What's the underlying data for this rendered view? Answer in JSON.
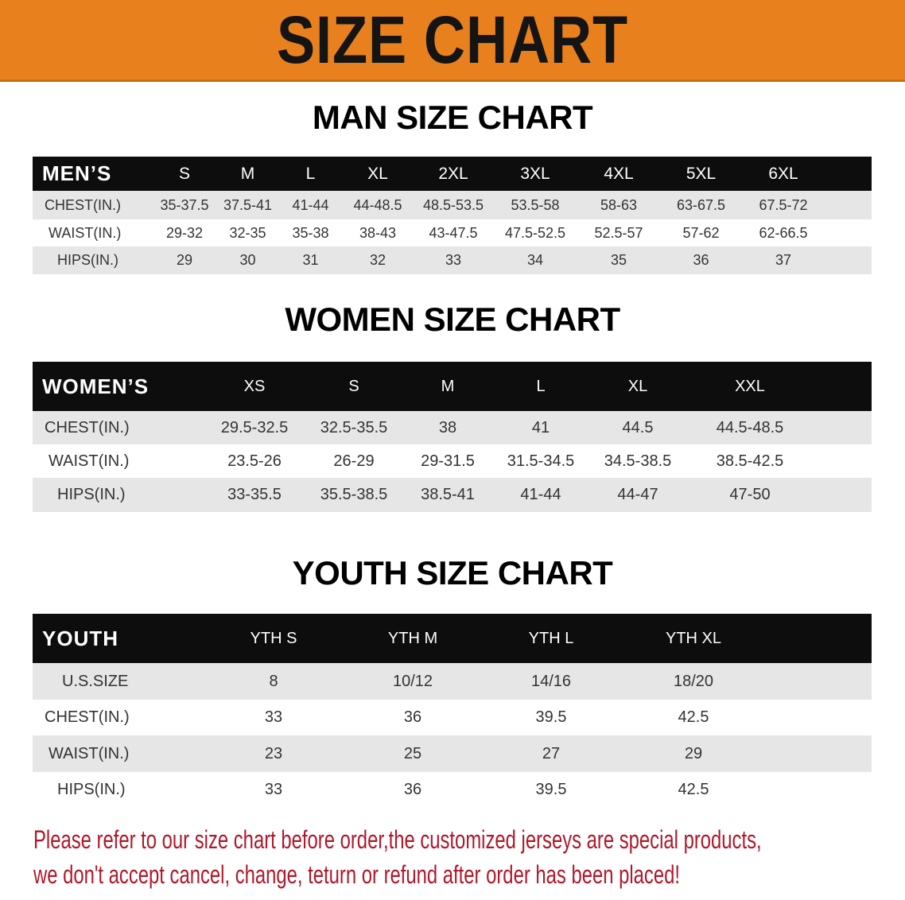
{
  "title": "SIZE CHART",
  "colors": {
    "banner": "#E8801E",
    "header_row": "#0d0d0d",
    "stripe": "#e6e6e6",
    "notice": "#B0182A"
  },
  "men": {
    "title": "MAN SIZE CHART",
    "header": "MEN’S",
    "sizes": [
      "S",
      "M",
      "L",
      "XL",
      "2XL",
      "3XL",
      "4XL",
      "5XL",
      "6XL"
    ],
    "rows": [
      {
        "label": "CHEST(IN.)",
        "values": [
          "35-37.5",
          "37.5-41",
          "41-44",
          "44-48.5",
          "48.5-53.5",
          "53.5-58",
          "58-63",
          "63-67.5",
          "67.5-72"
        ]
      },
      {
        "label": "WAIST(IN.)",
        "values": [
          "29-32",
          "32-35",
          "35-38",
          "38-43",
          "43-47.5",
          "47.5-52.5",
          "52.5-57",
          "57-62",
          "62-66.5"
        ]
      },
      {
        "label": "HIPS(IN.)",
        "values": [
          "29",
          "30",
          "31",
          "32",
          "33",
          "34",
          "35",
          "36",
          "37"
        ]
      }
    ]
  },
  "women": {
    "title": "WOMEN SIZE CHART",
    "header": "WOMEN’S",
    "sizes": [
      "XS",
      "S",
      "M",
      "L",
      "XL",
      "XXL"
    ],
    "rows": [
      {
        "label": "CHEST(IN.)",
        "values": [
          "29.5-32.5",
          "32.5-35.5",
          "38",
          "41",
          "44.5",
          "44.5-48.5"
        ]
      },
      {
        "label": "WAIST(IN.)",
        "values": [
          "23.5-26",
          "26-29",
          "29-31.5",
          "31.5-34.5",
          "34.5-38.5",
          "38.5-42.5"
        ]
      },
      {
        "label": "HIPS(IN.)",
        "values": [
          "33-35.5",
          "35.5-38.5",
          "38.5-41",
          "41-44",
          "44-47",
          "47-50"
        ]
      }
    ]
  },
  "youth": {
    "title": "YOUTH SIZE CHART",
    "header": "YOUTH",
    "sizes": [
      "YTH S",
      "YTH M",
      "YTH L",
      "YTH XL"
    ],
    "rows": [
      {
        "label": "U.S.SIZE",
        "values": [
          "8",
          "10/12",
          "14/16",
          "18/20"
        ]
      },
      {
        "label": "CHEST(IN.)",
        "values": [
          "33",
          "36",
          "39.5",
          "42.5"
        ]
      },
      {
        "label": "WAIST(IN.)",
        "values": [
          "23",
          "25",
          "27",
          "29"
        ]
      },
      {
        "label": "HIPS(IN.)",
        "values": [
          "33",
          "36",
          "39.5",
          "42.5"
        ]
      }
    ]
  },
  "notice": {
    "line1": "Please refer to our size chart before order,the customized jerseys are special products,",
    "line2": "we don't accept cancel, change, teturn or refund after order has been placed!"
  }
}
